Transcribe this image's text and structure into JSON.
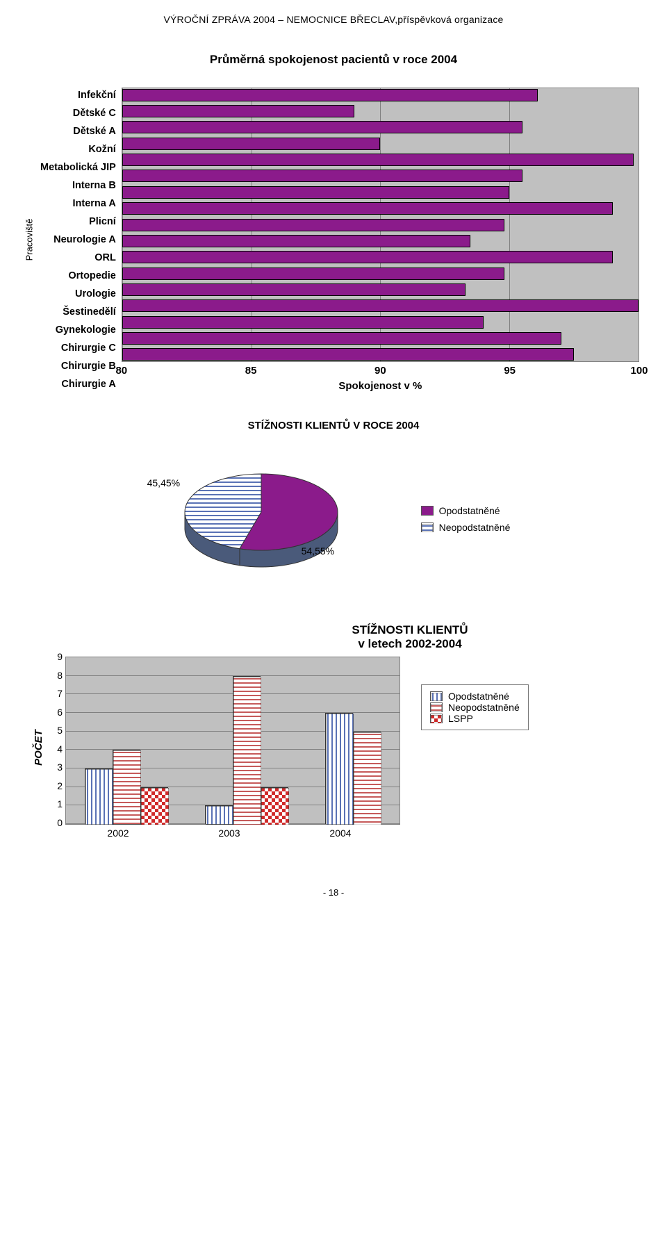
{
  "doc_header": "VÝROČNÍ ZPRÁVA 2004 – NEMOCNICE BŘECLAV,příspěvková organizace",
  "bar_chart": {
    "type": "bar_horizontal",
    "title": "Průměrná spokojenost pacientů v roce 2004",
    "title_fontsize": 17,
    "ylabel": "Pracoviště",
    "xlabel": "Spokojenost v %",
    "xmin": 80,
    "xmax": 100,
    "xtick_step": 5,
    "xticks": [
      80,
      85,
      90,
      95,
      100
    ],
    "bar_fill": "#8b1b8b",
    "bar_border": "#000000",
    "plot_bg": "#c0c0c0",
    "grid_color": "#808080",
    "label_fontweight": "bold",
    "categories": [
      "Infekční",
      "Dětské C",
      "Dětské A",
      "Kožní",
      "Metabolická JIP",
      "Interna B",
      "Interna A",
      "Plicní",
      "Neurologie A",
      "ORL",
      "Ortopedie",
      "Urologie",
      "Šestinedělí",
      "Gynekologie",
      "Chirurgie C",
      "Chirurgie B",
      "Chirurgie A"
    ],
    "values": [
      96.1,
      89.0,
      95.5,
      90.0,
      99.8,
      95.5,
      95.0,
      99.0,
      94.8,
      93.5,
      99.0,
      94.8,
      93.3,
      100.0,
      94.0,
      97.0,
      97.5
    ]
  },
  "pie_chart": {
    "type": "pie_3d",
    "title": "STÍŽNOSTI KLIENTŮ V ROCE 2004",
    "title_fontsize": 15,
    "slices": [
      {
        "label": "Opodstatněné",
        "pct": 54.55,
        "pct_label": "54,55%",
        "fill": "#8b1b8b",
        "border": "#333333"
      },
      {
        "label": "Neopodstatněné",
        "pct": 45.45,
        "pct_label": "45,45%",
        "fill_pattern": "h-stripe-blue",
        "fill": "#b8c7e6",
        "border": "#333333"
      }
    ],
    "depth_side_color": "#4a5a7a",
    "background_color": "#ffffff"
  },
  "cluster_chart": {
    "type": "bar_clustered",
    "title": "STÍŽNOSTI KLIENTŮ\nv letech 2002-2004",
    "title_fontsize": 17,
    "ylabel": "POČET",
    "ymin": 0,
    "ymax": 9,
    "ytick_step": 1,
    "yticks": [
      0,
      1,
      2,
      3,
      4,
      5,
      6,
      7,
      8,
      9
    ],
    "plot_bg": "#c0c0c0",
    "grid_color": "#808080",
    "categories": [
      "2002",
      "2003",
      "2004"
    ],
    "series": [
      {
        "name": "Opodstatněné",
        "pattern": "v-stripe-blue",
        "color": "#5a72b5",
        "values": [
          3,
          1,
          6
        ]
      },
      {
        "name": "Neopodstatněné",
        "pattern": "h-stripe-red",
        "color": "#c65a5a",
        "values": [
          4,
          8,
          5
        ]
      },
      {
        "name": "LSPP",
        "pattern": "checker-red",
        "color": "#d02a2a",
        "values": [
          2,
          2,
          0
        ]
      }
    ]
  },
  "page_number": "- 18 -"
}
